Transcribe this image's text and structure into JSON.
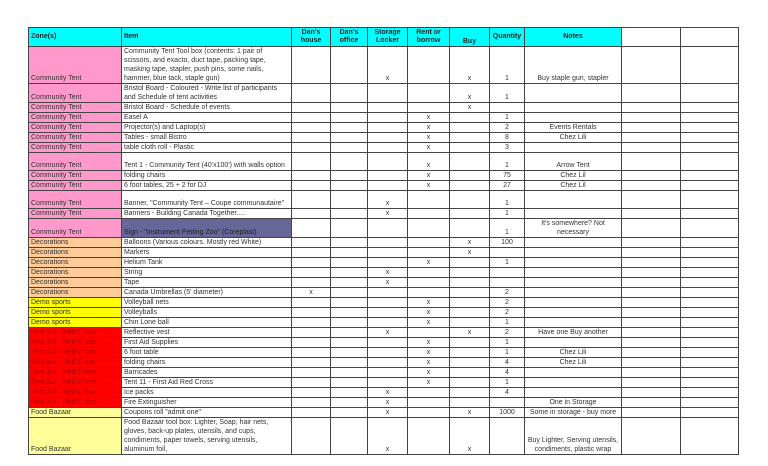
{
  "headers": [
    "Zone(s)",
    "Item",
    "Dan's house",
    "Dan's office",
    "Storage Locker",
    "Rent or borrow",
    "Buy",
    "Quantity",
    "Notes",
    "",
    ""
  ],
  "colors": {
    "header": "#00ffff",
    "Community Tent": "#ff99cc",
    "Decorations": "#ffcc99",
    "Demo sports": "#ffff00",
    "First Aid - Red Cross": "#ff0000",
    "Food Bazaar": "#ffff99",
    "highlight_item": "#666699",
    "first_aid_text": "#990000"
  },
  "rows": [
    {
      "zone": "Community Tent",
      "item": "Community Tent Tool box (contents: 1 pair of scissors, and exacto, duct tape, packing tape, masking tape, stapler, push pins, some nails, hammer, blue tack, staple gun)",
      "house": "",
      "office": "",
      "storage": "x",
      "rent": "",
      "buy": "x",
      "qty": "1",
      "notes": "Buy staple gun, stapler"
    },
    {
      "zone": "Community Tent",
      "item": "Bristol Board - Coloured - Write list of participants and Schedule of tent activities",
      "house": "",
      "office": "",
      "storage": "",
      "rent": "",
      "buy": "x",
      "qty": "1",
      "notes": ""
    },
    {
      "zone": "Community Tent",
      "item": "Bristol Board - Schedule of events",
      "house": "",
      "office": "",
      "storage": "",
      "rent": "",
      "buy": "x",
      "qty": "",
      "notes": ""
    },
    {
      "zone": "Community Tent",
      "item": "Easel A",
      "house": "",
      "office": "",
      "storage": "",
      "rent": "x",
      "buy": "",
      "qty": "1",
      "notes": ""
    },
    {
      "zone": "Community Tent",
      "item": "Projector(s) and Laptop(s)",
      "house": "",
      "office": "",
      "storage": "",
      "rent": "x",
      "buy": "",
      "qty": "2",
      "notes": "Events Rentals"
    },
    {
      "zone": "Community Tent",
      "item": "Tables - small Bistro",
      "house": "",
      "office": "",
      "storage": "",
      "rent": "x",
      "buy": "",
      "qty": "8",
      "notes": "Chez Lili"
    },
    {
      "zone": "Community Tent",
      "item": "table cloth roll - Plastic",
      "house": "",
      "office": "",
      "storage": "",
      "rent": "x",
      "buy": "",
      "qty": "3",
      "notes": ""
    },
    {
      "zone": "Community Tent",
      "item": "Tent 1 - Community Tent (40'x100') with walls option",
      "house": "",
      "office": "",
      "storage": "",
      "rent": "x",
      "buy": "",
      "qty": "1",
      "notes": "Arrow Tent"
    },
    {
      "zone": "Community Tent",
      "item": "folding chairs",
      "house": "",
      "office": "",
      "storage": "",
      "rent": "x",
      "buy": "",
      "qty": "75",
      "notes": "Chez Lil"
    },
    {
      "zone": "Community Tent",
      "item": "6 foot tables, 25 + 2 for DJ",
      "house": "",
      "office": "",
      "storage": "",
      "rent": "x",
      "buy": "",
      "qty": "27",
      "notes": "Chez Lil"
    },
    {
      "zone": "Community Tent",
      "item": "Banner, \"Community Tent – Coupe communautaire\"",
      "house": "",
      "office": "",
      "storage": "x",
      "rent": "",
      "buy": "",
      "qty": "1",
      "notes": ""
    },
    {
      "zone": "Community Tent",
      "item": "Banners - Building Canada Together.....",
      "house": "",
      "office": "",
      "storage": "x",
      "rent": "",
      "buy": "",
      "qty": "1",
      "notes": ""
    },
    {
      "zone": "Community Tent",
      "item": "Sign - \"Instrument Petting Zoo\" (Coreplast)",
      "house": "",
      "office": "",
      "storage": "",
      "rent": "",
      "buy": "",
      "qty": "1",
      "notes": "It's somewhere? Not necessary",
      "highlight": true
    },
    {
      "zone": "Decorations",
      "item": "Balloons (Various colours. Mostly red White)",
      "house": "",
      "office": "",
      "storage": "",
      "rent": "",
      "buy": "x",
      "qty": "100",
      "notes": ""
    },
    {
      "zone": "Decorations",
      "item": "Markers",
      "house": "",
      "office": "",
      "storage": "",
      "rent": "",
      "buy": "x",
      "qty": "",
      "notes": ""
    },
    {
      "zone": "Decorations",
      "item": "Helium Tank",
      "house": "",
      "office": "",
      "storage": "",
      "rent": "x",
      "buy": "",
      "qty": "1",
      "notes": ""
    },
    {
      "zone": "Decorations",
      "item": "String",
      "house": "",
      "office": "",
      "storage": "x",
      "rent": "",
      "buy": "",
      "qty": "",
      "notes": ""
    },
    {
      "zone": "Decorations",
      "item": "Tape",
      "house": "",
      "office": "",
      "storage": "x",
      "rent": "",
      "buy": "",
      "qty": "",
      "notes": ""
    },
    {
      "zone": "Decorations",
      "item": "Canada Umbrellas (5' diameter)",
      "house": "x",
      "office": "",
      "storage": "",
      "rent": "",
      "buy": "",
      "qty": "2",
      "notes": ""
    },
    {
      "zone": "Demo sports",
      "item": "Volleyball nets",
      "house": "",
      "office": "",
      "storage": "",
      "rent": "x",
      "buy": "",
      "qty": "2",
      "notes": ""
    },
    {
      "zone": "Demo sports",
      "item": "Volleyballs",
      "house": "",
      "office": "",
      "storage": "",
      "rent": "x",
      "buy": "",
      "qty": "2",
      "notes": ""
    },
    {
      "zone": "Demo sports",
      "item": "Chin Lone ball",
      "house": "",
      "office": "",
      "storage": "",
      "rent": "x",
      "buy": "",
      "qty": "1",
      "notes": ""
    },
    {
      "zone": "First Aid - Red Cross",
      "item": "Reflective vest",
      "house": "",
      "office": "",
      "storage": "x",
      "rent": "",
      "buy": "x",
      "qty": "2",
      "notes": "Have one Buy another"
    },
    {
      "zone": "First Aid - Red Cross",
      "item": "First Aid Supplies",
      "house": "",
      "office": "",
      "storage": "",
      "rent": "x",
      "buy": "",
      "qty": "1",
      "notes": ""
    },
    {
      "zone": "First Aid - Red Cross",
      "item": "6 foot table",
      "house": "",
      "office": "",
      "storage": "",
      "rent": "x",
      "buy": "",
      "qty": "1",
      "notes": "Chez Lili"
    },
    {
      "zone": "First Aid - Red Cross",
      "item": "folding chairs",
      "house": "",
      "office": "",
      "storage": "",
      "rent": "x",
      "buy": "",
      "qty": "4",
      "notes": "Chez Lili"
    },
    {
      "zone": "First Aid - Red Cross",
      "item": "Barricades",
      "house": "",
      "office": "",
      "storage": "",
      "rent": "x",
      "buy": "",
      "qty": "4",
      "notes": ""
    },
    {
      "zone": "First Aid - Red Cross",
      "item": "Tent 11 - First Aid Red Cross",
      "house": "",
      "office": "",
      "storage": "",
      "rent": "x",
      "buy": "",
      "qty": "1",
      "notes": ""
    },
    {
      "zone": "First Aid - Red Cross",
      "item": "Ice packs",
      "house": "",
      "office": "",
      "storage": "x",
      "rent": "",
      "buy": "",
      "qty": "4",
      "notes": ""
    },
    {
      "zone": "First Aid - Red Cross",
      "item": "Fire Extinguisher",
      "house": "",
      "office": "",
      "storage": "x",
      "rent": "",
      "buy": "",
      "qty": "",
      "notes": "One in Storage"
    },
    {
      "zone": "Food Bazaar",
      "item": "Coupons roll \"admit one\"",
      "house": "",
      "office": "",
      "storage": "x",
      "rent": "",
      "buy": "x",
      "qty": "1000",
      "notes": "Some in storage - buy more"
    },
    {
      "zone": "Food Bazaar",
      "item": "Food Bazaar tool box: Lighter, Soap, hair nets, gloves, back-up plates, utensils, and cups, condiments, paper towels, serving utensils,  aluminum foil,",
      "house": "",
      "office": "",
      "storage": "x",
      "rent": "",
      "buy": "x",
      "qty": "",
      "notes": "Buy Lighter, Serving utensils, condiments, plastic wrap"
    }
  ]
}
